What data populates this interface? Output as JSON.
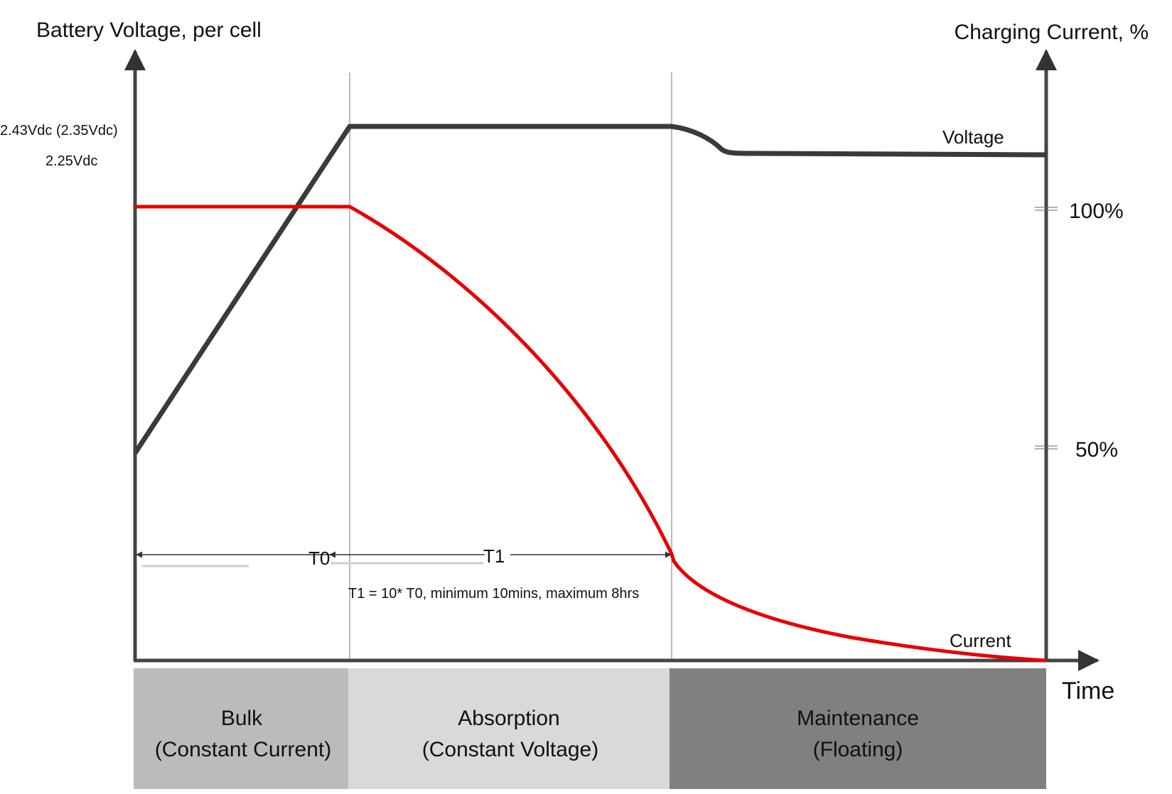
{
  "axes": {
    "left_title": "Battery Voltage, per cell",
    "right_title": "Charging Current, %",
    "x_title": "Time",
    "left_ticks": [
      "2.43Vdc (2.35Vdc)",
      "2.25Vdc"
    ],
    "right_ticks": [
      "100%",
      "50%"
    ]
  },
  "series": {
    "voltage_label": "Voltage",
    "current_label": "Current",
    "voltage_color": "#3a3a3a",
    "current_color": "#e80000"
  },
  "timing": {
    "t0_label": "T0",
    "t1_label": "T1",
    "note": "T1 = 10* T0, minimum 10mins, maximum 8hrs"
  },
  "stages": [
    {
      "name": "Bulk",
      "detail": "(Constant Current)",
      "color": "#bbbbbb"
    },
    {
      "name": "Absorption",
      "detail": "(Constant Voltage)",
      "color": "#d9d9d9"
    },
    {
      "name": "Maintenance",
      "detail": "(Floating)",
      "color": "#808080"
    }
  ]
}
